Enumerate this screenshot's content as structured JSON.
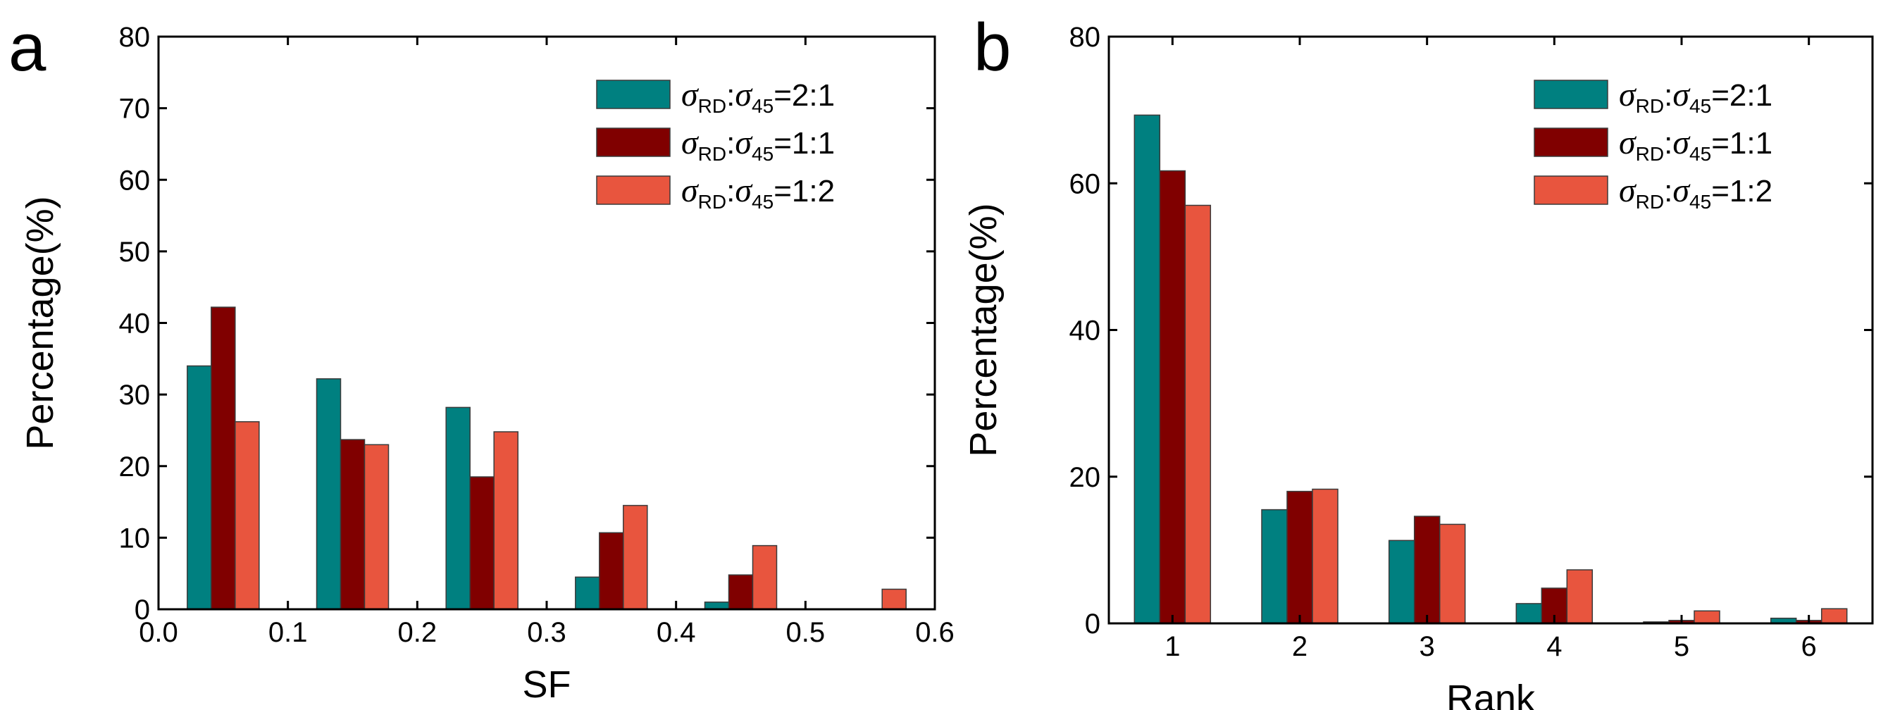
{
  "chart_data": [
    {
      "type": "bar",
      "panel_label": "a",
      "xlabel": "SF",
      "ylabel": "Percentage(%)",
      "xlim": [
        0.0,
        0.6
      ],
      "ylim": [
        0,
        80
      ],
      "x_ticks": [
        "0.0",
        "0.1",
        "0.2",
        "0.3",
        "0.4",
        "0.5",
        "0.6"
      ],
      "y_ticks": [
        "0",
        "10",
        "20",
        "30",
        "40",
        "50",
        "60",
        "70",
        "80"
      ],
      "x": [
        0.05,
        0.15,
        0.25,
        0.35,
        0.45,
        0.55
      ],
      "legend_position": "top-right",
      "series": [
        {
          "name": "σRD:σ45=2:1",
          "symbol1": "σ",
          "sub1": "RD",
          "symbol2": "σ",
          "sub2": "45",
          "ratio": "=2:1",
          "color": "#008080",
          "values": [
            34,
            32.2,
            28.2,
            4.5,
            1,
            0
          ]
        },
        {
          "name": "σRD:σ45=1:1",
          "symbol1": "σ",
          "sub1": "RD",
          "symbol2": "σ",
          "sub2": "45",
          "ratio": "=1:1",
          "color": "#800000",
          "values": [
            42.2,
            23.7,
            18.5,
            10.7,
            4.8,
            0
          ]
        },
        {
          "name": "σRD:σ45=1:2",
          "symbol1": "σ",
          "sub1": "RD",
          "symbol2": "σ",
          "sub2": "45",
          "ratio": "=1:2",
          "color": "#e8553e",
          "values": [
            26.2,
            23,
            24.8,
            14.5,
            8.9,
            2.8
          ]
        }
      ]
    },
    {
      "type": "bar",
      "panel_label": "b",
      "xlabel": "Rank",
      "ylabel": "Percentage(%)",
      "xlim": [
        0.5,
        6.5
      ],
      "ylim": [
        0,
        80
      ],
      "x_ticks": [
        "1",
        "2",
        "3",
        "4",
        "5",
        "6"
      ],
      "y_ticks": [
        "0",
        "20",
        "40",
        "60",
        "80"
      ],
      "x": [
        1,
        2,
        3,
        4,
        5,
        6
      ],
      "legend_position": "top-right",
      "series": [
        {
          "name": "σRD:σ45=2:1",
          "symbol1": "σ",
          "sub1": "RD",
          "symbol2": "σ",
          "sub2": "45",
          "ratio": "=2:1",
          "color": "#008080",
          "values": [
            69.3,
            15.5,
            11.3,
            2.7,
            0.2,
            0.7
          ]
        },
        {
          "name": "σRD:σ45=1:1",
          "symbol1": "σ",
          "sub1": "RD",
          "symbol2": "σ",
          "sub2": "45",
          "ratio": "=1:1",
          "color": "#800000",
          "values": [
            61.7,
            18,
            14.6,
            4.8,
            0.4,
            0.4
          ]
        },
        {
          "name": "σRD:σ45=1:2",
          "symbol1": "σ",
          "sub1": "RD",
          "symbol2": "σ",
          "sub2": "45",
          "ratio": "=1:2",
          "color": "#e8553e",
          "values": [
            57,
            18.3,
            13.5,
            7.3,
            1.7,
            2
          ]
        }
      ]
    }
  ]
}
